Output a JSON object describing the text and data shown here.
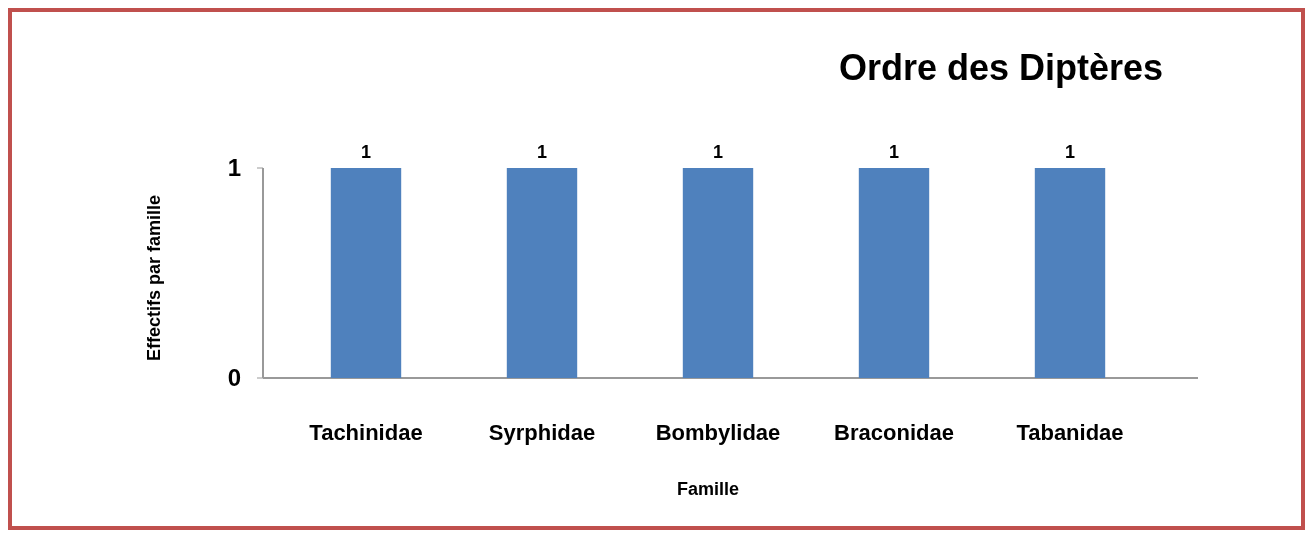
{
  "chart_data": {
    "type": "bar",
    "title": "Ordre des Diptères",
    "xlabel": "Famille",
    "ylabel": "Effectifs par famille",
    "categories": [
      "Tachinidae",
      "Syrphidae",
      "Bombylidae",
      "Braconidae",
      "Tabanidae"
    ],
    "values": [
      1,
      1,
      1,
      1,
      1
    ],
    "color": "#4f81bd",
    "ylim": [
      0,
      1
    ],
    "yticks": [
      0,
      1
    ],
    "data_labels": true
  }
}
